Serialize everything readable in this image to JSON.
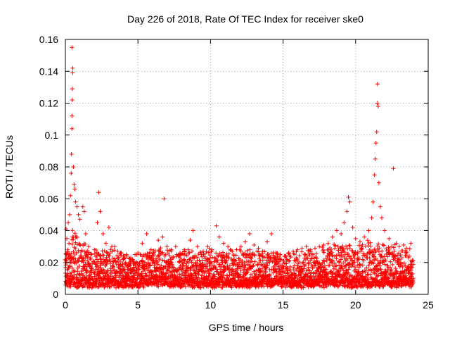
{
  "chart_data": {
    "type": "scatter",
    "title": "Day 226 of 2018, Rate Of TEC Index for receiver ske0",
    "xlabel": "GPS time / hours",
    "ylabel": "ROTI / TECUs",
    "xlim": [
      0,
      25
    ],
    "ylim": [
      0,
      0.16
    ],
    "xticks": [
      0,
      5,
      10,
      15,
      20,
      25
    ],
    "xtick_labels": [
      "0",
      "5",
      "10",
      "15",
      "20",
      "25"
    ],
    "yticks": [
      0,
      0.02,
      0.04,
      0.06,
      0.08,
      0.1,
      0.12,
      0.14,
      0.16
    ],
    "ytick_labels": [
      "0",
      "0.02",
      "0.04",
      "0.06",
      "0.08",
      "0.1",
      "0.12",
      "0.14",
      "0.16"
    ],
    "grid": true,
    "marker": "+",
    "color": "#ff0000",
    "series": [
      {
        "name": "ROTI",
        "points": [
          [
            0.05,
            0.041
          ],
          [
            0.1,
            0.035
          ],
          [
            0.15,
            0.028
          ],
          [
            0.2,
            0.045
          ],
          [
            0.25,
            0.032
          ],
          [
            0.3,
            0.05
          ],
          [
            0.35,
            0.062
          ],
          [
            0.4,
            0.076
          ],
          [
            0.42,
            0.088
          ],
          [
            0.45,
            0.104
          ],
          [
            0.45,
            0.112
          ],
          [
            0.47,
            0.122
          ],
          [
            0.48,
            0.129
          ],
          [
            0.5,
            0.139
          ],
          [
            0.5,
            0.142
          ],
          [
            0.45,
            0.155
          ],
          [
            0.55,
            0.08
          ],
          [
            0.6,
            0.069
          ],
          [
            0.65,
            0.066
          ],
          [
            0.7,
            0.058
          ],
          [
            0.8,
            0.055
          ],
          [
            0.9,
            0.05
          ],
          [
            1.0,
            0.047
          ],
          [
            1.2,
            0.055
          ],
          [
            1.3,
            0.052
          ],
          [
            1.4,
            0.038
          ],
          [
            1.6,
            0.03
          ],
          [
            1.8,
            0.025
          ],
          [
            2.0,
            0.028
          ],
          [
            2.2,
            0.045
          ],
          [
            2.3,
            0.064
          ],
          [
            2.4,
            0.052
          ],
          [
            2.6,
            0.038
          ],
          [
            2.8,
            0.032
          ],
          [
            3.0,
            0.042
          ],
          [
            3.2,
            0.03
          ],
          [
            3.4,
            0.03
          ],
          [
            3.6,
            0.027
          ],
          [
            3.8,
            0.026
          ],
          [
            4.0,
            0.024
          ],
          [
            4.2,
            0.025
          ],
          [
            4.5,
            0.022
          ],
          [
            4.8,
            0.025
          ],
          [
            5.0,
            0.026
          ],
          [
            5.3,
            0.032
          ],
          [
            5.6,
            0.038
          ],
          [
            5.9,
            0.028
          ],
          [
            6.1,
            0.026
          ],
          [
            6.4,
            0.034
          ],
          [
            6.7,
            0.036
          ],
          [
            6.8,
            0.06
          ],
          [
            7.0,
            0.03
          ],
          [
            7.3,
            0.028
          ],
          [
            7.6,
            0.03
          ],
          [
            7.9,
            0.026
          ],
          [
            8.2,
            0.028
          ],
          [
            8.6,
            0.034
          ],
          [
            8.8,
            0.04
          ],
          [
            9.1,
            0.03
          ],
          [
            9.5,
            0.027
          ],
          [
            9.8,
            0.03
          ],
          [
            10.1,
            0.028
          ],
          [
            10.4,
            0.043
          ],
          [
            10.6,
            0.036
          ],
          [
            10.9,
            0.032
          ],
          [
            11.2,
            0.03
          ],
          [
            11.5,
            0.027
          ],
          [
            11.8,
            0.028
          ],
          [
            12.1,
            0.03
          ],
          [
            12.4,
            0.033
          ],
          [
            12.7,
            0.038
          ],
          [
            13.0,
            0.031
          ],
          [
            13.3,
            0.029
          ],
          [
            13.6,
            0.027
          ],
          [
            13.9,
            0.033
          ],
          [
            14.2,
            0.038
          ],
          [
            14.5,
            0.026
          ],
          [
            14.8,
            0.025
          ],
          [
            15.1,
            0.024
          ],
          [
            15.4,
            0.026
          ],
          [
            15.7,
            0.027
          ],
          [
            16.0,
            0.028
          ],
          [
            16.3,
            0.029
          ],
          [
            16.6,
            0.03
          ],
          [
            16.9,
            0.028
          ],
          [
            17.2,
            0.029
          ],
          [
            17.5,
            0.03
          ],
          [
            17.8,
            0.031
          ],
          [
            18.1,
            0.032
          ],
          [
            18.4,
            0.036
          ],
          [
            18.7,
            0.04
          ],
          [
            19.0,
            0.038
          ],
          [
            19.2,
            0.045
          ],
          [
            19.4,
            0.052
          ],
          [
            19.5,
            0.061
          ],
          [
            19.6,
            0.058
          ],
          [
            19.8,
            0.042
          ],
          [
            20.0,
            0.035
          ],
          [
            20.3,
            0.033
          ],
          [
            20.6,
            0.036
          ],
          [
            20.9,
            0.04
          ],
          [
            21.1,
            0.048
          ],
          [
            21.2,
            0.058
          ],
          [
            21.3,
            0.075
          ],
          [
            21.35,
            0.085
          ],
          [
            21.4,
            0.095
          ],
          [
            21.45,
            0.102
          ],
          [
            21.5,
            0.12
          ],
          [
            21.5,
            0.132
          ],
          [
            21.55,
            0.118
          ],
          [
            21.6,
            0.07
          ],
          [
            21.7,
            0.055
          ],
          [
            21.8,
            0.048
          ],
          [
            22.0,
            0.04
          ],
          [
            22.3,
            0.035
          ],
          [
            22.6,
            0.079
          ],
          [
            22.8,
            0.032
          ],
          [
            23.0,
            0.03
          ],
          [
            23.3,
            0.031
          ],
          [
            23.5,
            0.029
          ],
          [
            23.8,
            0.032
          ]
        ]
      }
    ],
    "band": {
      "x_start": 0.0,
      "x_end": 24.0,
      "x_step": 0.05,
      "low": 0.004,
      "high_profile": [
        [
          0,
          0.022
        ],
        [
          0.5,
          0.036
        ],
        [
          1,
          0.03
        ],
        [
          1.5,
          0.026
        ],
        [
          2,
          0.024
        ],
        [
          3,
          0.026
        ],
        [
          4,
          0.022
        ],
        [
          5,
          0.022
        ],
        [
          6,
          0.024
        ],
        [
          7,
          0.026
        ],
        [
          8,
          0.024
        ],
        [
          9,
          0.024
        ],
        [
          10,
          0.024
        ],
        [
          11,
          0.024
        ],
        [
          12,
          0.024
        ],
        [
          13,
          0.024
        ],
        [
          14,
          0.024
        ],
        [
          15,
          0.022
        ],
        [
          16,
          0.024
        ],
        [
          17,
          0.024
        ],
        [
          18,
          0.026
        ],
        [
          19,
          0.028
        ],
        [
          20,
          0.026
        ],
        [
          21,
          0.03
        ],
        [
          22,
          0.028
        ],
        [
          23,
          0.026
        ],
        [
          24,
          0.024
        ]
      ]
    }
  }
}
